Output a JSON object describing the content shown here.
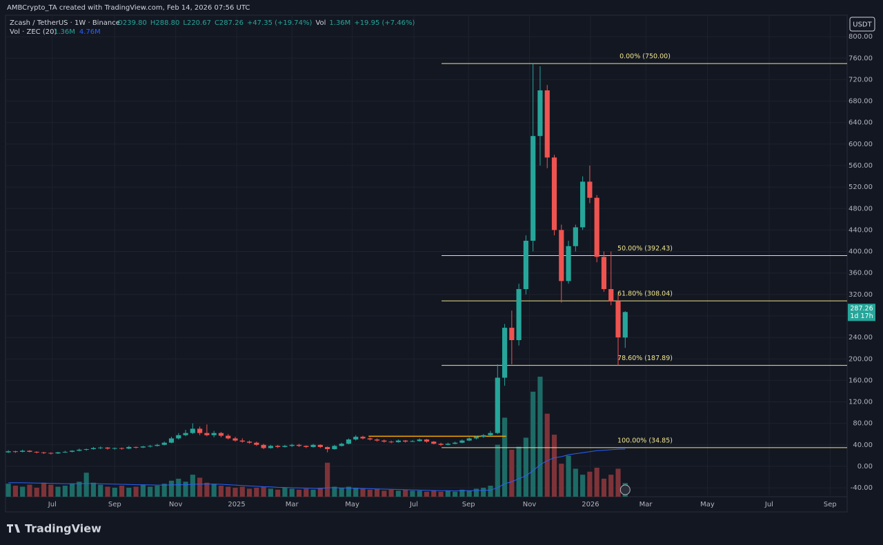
{
  "header": "AMBCrypto_TA created with TradingView.com, Feb 14, 2026 07:56 UTC",
  "brand": "TradingView",
  "currency": "USDT",
  "countdown": "1d 17h",
  "chart_data": {
    "type": "candlestick",
    "title": "Zcash / TetherUS · 1W · Binance",
    "legend_values": [
      "O239.80",
      "H288.80",
      "L220.67",
      "C287.26",
      "+47.35 (+19.74%)",
      "Vol",
      "1.36M",
      "+19.95 (+7.46%)"
    ],
    "volume_title": "Vol · ZEC (20)",
    "volume_legend": [
      "1.36M",
      "4.76M"
    ],
    "up_color": "#26a69a",
    "down_color": "#ef5350",
    "volume_up_color": "#1d6b66",
    "volume_down_color": "#7e3338",
    "volume_ma_color": "#2962ff",
    "fib_color": "#f0e68c",
    "ohlc": [
      [
        26,
        30,
        25,
        28
      ],
      [
        28,
        29,
        25,
        27
      ],
      [
        27,
        31,
        26,
        29
      ],
      [
        29,
        30,
        26,
        27
      ],
      [
        27,
        28,
        24,
        26
      ],
      [
        26,
        27,
        23,
        25
      ],
      [
        25,
        26,
        22,
        24
      ],
      [
        24,
        27,
        23,
        26
      ],
      [
        26,
        29,
        25,
        27
      ],
      [
        27,
        30,
        26,
        29
      ],
      [
        29,
        33,
        28,
        31
      ],
      [
        31,
        33,
        29,
        32
      ],
      [
        32,
        36,
        31,
        34
      ],
      [
        34,
        37,
        32,
        35
      ],
      [
        35,
        36,
        31,
        33
      ],
      [
        33,
        35,
        31,
        34
      ],
      [
        34,
        35,
        31,
        33
      ],
      [
        33,
        38,
        32,
        36
      ],
      [
        36,
        37,
        33,
        35
      ],
      [
        35,
        38,
        34,
        37
      ],
      [
        37,
        40,
        35,
        38
      ],
      [
        38,
        42,
        37,
        40
      ],
      [
        40,
        46,
        39,
        44
      ],
      [
        44,
        55,
        43,
        52
      ],
      [
        52,
        62,
        50,
        58
      ],
      [
        58,
        68,
        56,
        62
      ],
      [
        62,
        80,
        60,
        70
      ],
      [
        70,
        74,
        58,
        62
      ],
      [
        62,
        78,
        56,
        58
      ],
      [
        58,
        66,
        54,
        62
      ],
      [
        62,
        64,
        54,
        57
      ],
      [
        57,
        60,
        50,
        52
      ],
      [
        52,
        55,
        46,
        48
      ],
      [
        48,
        52,
        44,
        46
      ],
      [
        46,
        48,
        42,
        44
      ],
      [
        44,
        46,
        38,
        40
      ],
      [
        40,
        42,
        32,
        34
      ],
      [
        34,
        40,
        33,
        38
      ],
      [
        38,
        40,
        34,
        36
      ],
      [
        36,
        40,
        35,
        38
      ],
      [
        38,
        42,
        36,
        40
      ],
      [
        40,
        42,
        36,
        38
      ],
      [
        38,
        39,
        34,
        36
      ],
      [
        36,
        42,
        35,
        40
      ],
      [
        40,
        41,
        34,
        36
      ],
      [
        36,
        37,
        26,
        32
      ],
      [
        32,
        40,
        31,
        38
      ],
      [
        38,
        44,
        37,
        42
      ],
      [
        42,
        52,
        41,
        50
      ],
      [
        50,
        58,
        48,
        55
      ],
      [
        55,
        57,
        50,
        52
      ],
      [
        52,
        54,
        48,
        50
      ],
      [
        50,
        52,
        46,
        48
      ],
      [
        48,
        50,
        44,
        46
      ],
      [
        46,
        48,
        43,
        45
      ],
      [
        45,
        50,
        44,
        48
      ],
      [
        48,
        49,
        44,
        46
      ],
      [
        46,
        49,
        45,
        47
      ],
      [
        47,
        52,
        46,
        50
      ],
      [
        50,
        51,
        44,
        46
      ],
      [
        46,
        47,
        41,
        42
      ],
      [
        42,
        44,
        38,
        40
      ],
      [
        40,
        44,
        39,
        42
      ],
      [
        42,
        46,
        41,
        44
      ],
      [
        44,
        50,
        43,
        48
      ],
      [
        48,
        54,
        47,
        52
      ],
      [
        52,
        57,
        50,
        55
      ],
      [
        55,
        60,
        53,
        58
      ],
      [
        58,
        66,
        56,
        62
      ],
      [
        62,
        190,
        60,
        165
      ],
      [
        165,
        265,
        150,
        258
      ],
      [
        258,
        290,
        190,
        235
      ],
      [
        235,
        340,
        225,
        330
      ],
      [
        330,
        430,
        320,
        420
      ],
      [
        420,
        750,
        400,
        615
      ],
      [
        615,
        745,
        560,
        700
      ],
      [
        700,
        710,
        555,
        575
      ],
      [
        575,
        580,
        430,
        440
      ],
      [
        440,
        450,
        305,
        345
      ],
      [
        345,
        420,
        340,
        410
      ],
      [
        410,
        450,
        400,
        445
      ],
      [
        445,
        540,
        440,
        530
      ],
      [
        530,
        560,
        490,
        500
      ],
      [
        500,
        505,
        380,
        390
      ],
      [
        390,
        400,
        325,
        330
      ],
      [
        330,
        400,
        300,
        308
      ],
      [
        308,
        320,
        188,
        240
      ],
      [
        239.8,
        288.8,
        220.67,
        287.26
      ]
    ],
    "volume": [
      1.3,
      1.1,
      1.0,
      1.2,
      0.9,
      1.4,
      1.2,
      1.0,
      1.1,
      1.3,
      1.5,
      2.4,
      1.4,
      1.2,
      1.0,
      0.9,
      1.1,
      0.9,
      1.0,
      1.2,
      1.0,
      1.1,
      1.3,
      1.6,
      1.8,
      1.5,
      2.2,
      1.9,
      1.4,
      1.3,
      1.1,
      1.0,
      0.9,
      1.0,
      0.8,
      0.9,
      1.0,
      0.8,
      0.7,
      0.9,
      0.8,
      0.7,
      0.8,
      0.7,
      0.9,
      3.4,
      1.0,
      0.9,
      1.0,
      0.9,
      0.8,
      0.7,
      0.8,
      0.6,
      0.7,
      0.6,
      0.7,
      0.6,
      0.6,
      0.5,
      0.6,
      0.5,
      0.6,
      0.5,
      0.7,
      0.6,
      0.8,
      0.9,
      1.1,
      5.2,
      7.9,
      4.7,
      5.0,
      5.9,
      10.5,
      12.0,
      8.3,
      6.2,
      3.3,
      4.1,
      2.8,
      2.2,
      2.5,
      2.9,
      1.8,
      2.2,
      2.8,
      1.36
    ],
    "volume_ma": [
      1.4,
      1.4,
      1.4,
      1.38,
      1.36,
      1.35,
      1.34,
      1.32,
      1.3,
      1.3,
      1.3,
      1.32,
      1.32,
      1.3,
      1.28,
      1.26,
      1.24,
      1.22,
      1.2,
      1.2,
      1.18,
      1.16,
      1.16,
      1.18,
      1.2,
      1.2,
      1.24,
      1.26,
      1.26,
      1.26,
      1.24,
      1.2,
      1.16,
      1.12,
      1.08,
      1.04,
      1.0,
      0.98,
      0.94,
      0.92,
      0.9,
      0.88,
      0.86,
      0.84,
      0.82,
      0.9,
      0.9,
      0.88,
      0.86,
      0.84,
      0.82,
      0.8,
      0.78,
      0.76,
      0.74,
      0.72,
      0.7,
      0.68,
      0.66,
      0.64,
      0.62,
      0.6,
      0.6,
      0.58,
      0.6,
      0.6,
      0.62,
      0.64,
      0.66,
      0.9,
      1.3,
      1.5,
      1.8,
      2.1,
      2.6,
      3.2,
      3.6,
      3.9,
      4.0,
      4.2,
      4.3,
      4.4,
      4.5,
      4.6,
      4.65,
      4.7,
      4.75,
      4.76
    ],
    "ylim": [
      -54,
      840
    ],
    "yticks": [
      {
        "value": 800,
        "label": "800.00"
      },
      {
        "value": 760,
        "label": "760.00"
      },
      {
        "value": 720,
        "label": "720.00"
      },
      {
        "value": 680,
        "label": "680.00"
      },
      {
        "value": 640,
        "label": "640.00"
      },
      {
        "value": 600,
        "label": "600.00"
      },
      {
        "value": 560,
        "label": "560.00"
      },
      {
        "value": 520,
        "label": "520.00"
      },
      {
        "value": 480,
        "label": "480.00"
      },
      {
        "value": 440,
        "label": "440.00"
      },
      {
        "value": 400,
        "label": "400.00"
      },
      {
        "value": 360,
        "label": "360.00"
      },
      {
        "value": 320,
        "label": "320.00"
      },
      {
        "value": 280,
        "label": "280.00"
      },
      {
        "value": 240,
        "label": "240.00"
      },
      {
        "value": 200,
        "label": "200.00"
      },
      {
        "value": 160,
        "label": "160.00"
      },
      {
        "value": 120,
        "label": "120.00"
      },
      {
        "value": 80,
        "label": "80.00"
      },
      {
        "value": 40,
        "label": "40.00"
      },
      {
        "value": 0,
        "label": "0.00"
      },
      {
        "value": -40,
        "label": "-40.00"
      }
    ],
    "xlim": [
      -0.4,
      118.3
    ],
    "xticks": [
      {
        "value": 6.2,
        "label": "Jul"
      },
      {
        "value": 15.0,
        "label": "Sep"
      },
      {
        "value": 23.6,
        "label": "Nov"
      },
      {
        "value": 32.2,
        "label": "2025"
      },
      {
        "value": 40.0,
        "label": "Mar"
      },
      {
        "value": 48.5,
        "label": "May"
      },
      {
        "value": 57.2,
        "label": "Jul"
      },
      {
        "value": 64.9,
        "label": "Sep"
      },
      {
        "value": 73.5,
        "label": "Nov"
      },
      {
        "value": 82.1,
        "label": "2026"
      },
      {
        "value": 89.9,
        "label": "Mar"
      },
      {
        "value": 98.6,
        "label": "May"
      },
      {
        "value": 107.3,
        "label": "Jul"
      },
      {
        "value": 115.9,
        "label": "Sep"
      }
    ],
    "grid": true,
    "fib_levels": [
      {
        "value": 750,
        "label": "0.00% (750.00)"
      },
      {
        "value": 392.43,
        "label": "50.00% (392.43)"
      },
      {
        "value": 308.04,
        "label": "61.80% (308.04)"
      },
      {
        "value": 187.89,
        "label": "78.60% (187.89)"
      },
      {
        "value": 34.85,
        "label": "100.00% (34.85)"
      }
    ],
    "range_line": {
      "value": 56,
      "color": "#f7a600"
    }
  }
}
